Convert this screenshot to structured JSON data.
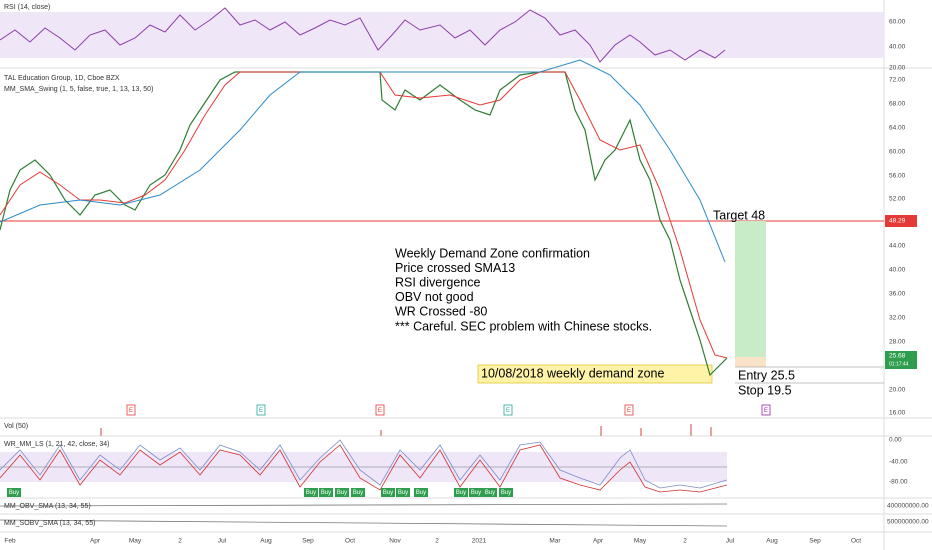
{
  "rsi_pane": {
    "label": "RSI (14, close)",
    "axis": [
      "60.00",
      "40.00",
      "20.00"
    ]
  },
  "main_pane": {
    "symbol": "TAL Education Group, 1D, Cboe BZX",
    "indicator": "MM_SMA_Swing (1, 5, false, true, 1, 13, 13, 50)",
    "axis": [
      "72.00",
      "68.00",
      "64.00",
      "60.00",
      "56.00",
      "52.00",
      "44.00",
      "40.00",
      "36.00",
      "32.00",
      "28.00",
      "20.00",
      "16.00"
    ],
    "target_tag": "48.29",
    "last_tag": "25.68",
    "timer": "01:17:44",
    "notes": [
      "Weekly Demand Zone confirmation",
      "Price crossed SMA13",
      "RSI divergence",
      "OBV not good",
      "WR Crossed -80",
      "*** Careful. SEC problem with Chinese stocks."
    ],
    "target": "Target 48",
    "zone": "10/08/2018 weekly demand zone",
    "entry": "Entry 25.5",
    "stop": "Stop 19.5",
    "earnings": "E"
  },
  "vol_pane": {
    "label": "Vol (50)"
  },
  "wr_pane": {
    "label": "WR_MM_LS (1, 21, 42, close, 34)",
    "axis": [
      "0.00",
      "-40.00",
      "-80.00"
    ],
    "signal": "Buy"
  },
  "obv_pane": {
    "label": "MM_OBV_SMA (13, 34, 55)",
    "axis": "400000000.00"
  },
  "sobv_pane": {
    "label": "MM_SOBV_SMA (13, 34, 55)",
    "axis": "500000000.00"
  },
  "time_axis": [
    "Feb",
    "Apr",
    "May",
    "2",
    "Jul",
    "Aug",
    "Sep",
    "Oct",
    "Nov",
    "2",
    "2021",
    "Mar",
    "Apr",
    "May",
    "2",
    "Jul",
    "Aug",
    "Sep",
    "Oct"
  ]
}
